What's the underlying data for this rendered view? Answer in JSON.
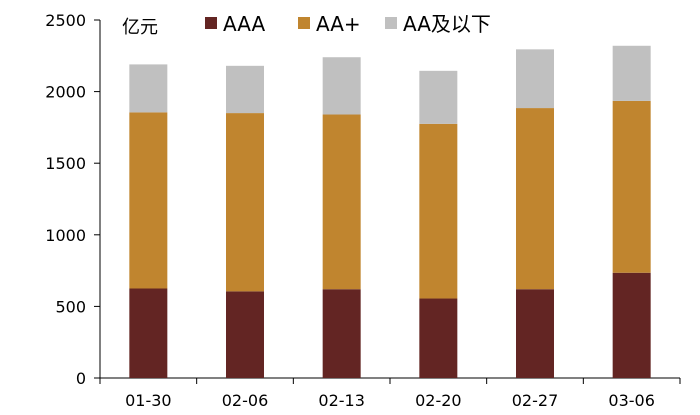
{
  "chart_data": {
    "type": "bar",
    "stacked": true,
    "unit_label": "亿元",
    "categories": [
      "01-30",
      "02-06",
      "02-13",
      "02-20",
      "02-27",
      "03-06"
    ],
    "series": [
      {
        "name": "AAA",
        "color": "#632523",
        "values": [
          625,
          605,
          620,
          555,
          620,
          735
        ]
      },
      {
        "name": "AA+",
        "color": "#C0852F",
        "values": [
          1230,
          1245,
          1220,
          1220,
          1265,
          1200
        ]
      },
      {
        "name": "AA及以下",
        "color": "#C0C0C0",
        "values": [
          335,
          330,
          400,
          370,
          410,
          385
        ]
      }
    ],
    "ylim": [
      0,
      2500
    ],
    "yticks": [
      0,
      500,
      1000,
      1500,
      2000,
      2500
    ],
    "grid": false,
    "legend_position": "top"
  }
}
